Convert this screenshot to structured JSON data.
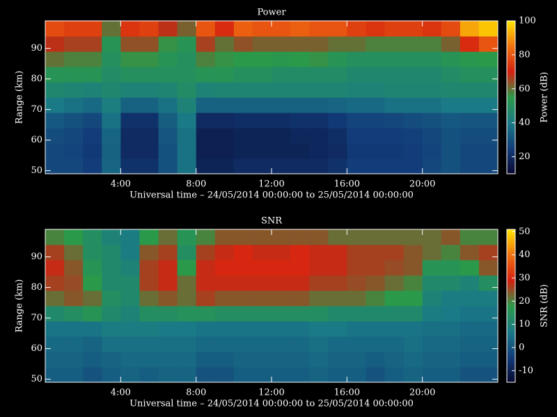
{
  "chart_data": [
    {
      "type": "heatmap",
      "title": "Power",
      "xlabel": "Universal time – 24/05/2014 00:00:00 to 25/05/2014 00:00:00",
      "ylabel": "Range (km)",
      "colorbar_label": "Power (dB)",
      "x": [
        0.5,
        1.5,
        2.5,
        3.5,
        4.5,
        5.5,
        6.5,
        7.5,
        8.5,
        9.5,
        10.5,
        11.5,
        12.5,
        13.5,
        14.5,
        15.5,
        16.5,
        17.5,
        18.5,
        19.5,
        20.5,
        21.5,
        22.5,
        23.5
      ],
      "y": [
        51.5,
        56.5,
        61.5,
        66.5,
        71.5,
        76.5,
        81.5,
        86.5,
        91.5,
        96.5
      ],
      "values": [
        [
          28,
          28,
          25,
          35,
          22,
          22,
          30,
          38,
          18,
          18,
          20,
          20,
          20,
          20,
          20,
          22,
          25,
          25,
          25,
          25,
          28,
          30,
          28,
          28
        ],
        [
          28,
          27,
          24,
          34,
          20,
          20,
          30,
          38,
          17,
          17,
          18,
          18,
          18,
          18,
          19,
          20,
          24,
          24,
          24,
          25,
          27,
          30,
          28,
          28
        ],
        [
          29,
          28,
          25,
          35,
          20,
          20,
          31,
          38,
          17,
          17,
          18,
          18,
          18,
          19,
          19,
          21,
          25,
          25,
          25,
          26,
          28,
          30,
          29,
          29
        ],
        [
          32,
          30,
          28,
          38,
          22,
          22,
          33,
          40,
          20,
          20,
          21,
          21,
          21,
          22,
          22,
          24,
          27,
          27,
          28,
          29,
          30,
          32,
          31,
          31
        ],
        [
          40,
          38,
          36,
          42,
          34,
          34,
          38,
          44,
          34,
          34,
          34,
          34,
          34,
          34,
          34,
          35,
          36,
          36,
          38,
          38,
          38,
          40,
          40,
          40
        ],
        [
          46,
          45,
          44,
          46,
          44,
          44,
          45,
          48,
          44,
          45,
          45,
          45,
          45,
          45,
          45,
          45,
          44,
          44,
          45,
          45,
          45,
          46,
          46,
          46
        ],
        [
          52,
          52,
          52,
          48,
          50,
          50,
          50,
          50,
          52,
          52,
          50,
          50,
          48,
          48,
          48,
          48,
          46,
          46,
          46,
          46,
          46,
          48,
          50,
          50
        ],
        [
          60,
          58,
          58,
          50,
          56,
          56,
          52,
          50,
          58,
          56,
          55,
          55,
          54,
          55,
          56,
          52,
          50,
          50,
          50,
          50,
          50,
          52,
          54,
          55
        ],
        [
          68,
          66,
          66,
          52,
          64,
          64,
          56,
          52,
          66,
          60,
          64,
          62,
          62,
          62,
          62,
          60,
          60,
          58,
          58,
          58,
          58,
          62,
          72,
          80
        ],
        [
          78,
          76,
          76,
          60,
          74,
          76,
          68,
          62,
          80,
          72,
          82,
          80,
          80,
          82,
          80,
          80,
          76,
          74,
          76,
          76,
          74,
          78,
          92,
          96
        ]
      ],
      "xlim": [
        0,
        24
      ],
      "xticks": [
        {
          "value": 4,
          "label": "4:00"
        },
        {
          "value": 8,
          "label": "8:00"
        },
        {
          "value": 12,
          "label": "12:00"
        },
        {
          "value": 16,
          "label": "16:00"
        },
        {
          "value": 20,
          "label": "20:00"
        }
      ],
      "ylim": [
        49,
        99
      ],
      "yticks": [
        50,
        60,
        70,
        80,
        90
      ],
      "clim": [
        10,
        100
      ],
      "cticks": [
        20,
        40,
        60,
        80,
        100
      ],
      "colormap": [
        "#08082e",
        "#123c7a",
        "#1a7a86",
        "#2a9a4a",
        "#d42010",
        "#f07010",
        "#ffe400"
      ]
    },
    {
      "type": "heatmap",
      "title": "SNR",
      "xlabel": "Universal time – 24/05/2014 00:00:00 to 25/05/2014 00:00:00",
      "ylabel": "Range (km)",
      "colorbar_label": "SNR (dB)",
      "x": [
        0.5,
        1.5,
        2.5,
        3.5,
        4.5,
        5.5,
        6.5,
        7.5,
        8.5,
        9.5,
        10.5,
        11.5,
        12.5,
        13.5,
        14.5,
        15.5,
        16.5,
        17.5,
        18.5,
        19.5,
        20.5,
        21.5,
        22.5,
        23.5
      ],
      "y": [
        51.5,
        56.5,
        61.5,
        66.5,
        71.5,
        76.5,
        81.5,
        86.5,
        91.5,
        96.5
      ],
      "values": [
        [
          2,
          2,
          0,
          2,
          3,
          2,
          3,
          3,
          0,
          0,
          2,
          2,
          2,
          2,
          3,
          2,
          2,
          0,
          2,
          3,
          2,
          2,
          0,
          0
        ],
        [
          3,
          3,
          2,
          3,
          4,
          4,
          4,
          4,
          2,
          2,
          3,
          3,
          3,
          3,
          4,
          3,
          3,
          2,
          3,
          4,
          3,
          3,
          2,
          2
        ],
        [
          4,
          4,
          3,
          5,
          5,
          5,
          5,
          5,
          4,
          4,
          4,
          4,
          4,
          4,
          5,
          4,
          4,
          4,
          4,
          5,
          4,
          4,
          3,
          3
        ],
        [
          6,
          6,
          6,
          8,
          8,
          8,
          7,
          7,
          6,
          6,
          6,
          6,
          6,
          6,
          7,
          7,
          6,
          6,
          6,
          6,
          5,
          5,
          4,
          4
        ],
        [
          12,
          14,
          16,
          12,
          10,
          14,
          14,
          15,
          15,
          14,
          14,
          14,
          14,
          14,
          14,
          12,
          12,
          12,
          12,
          12,
          8,
          7,
          6,
          6
        ],
        [
          22,
          24,
          22,
          14,
          12,
          22,
          24,
          22,
          26,
          24,
          24,
          24,
          24,
          24,
          22,
          22,
          22,
          20,
          18,
          18,
          10,
          8,
          8,
          8
        ],
        [
          26,
          25,
          18,
          12,
          12,
          26,
          28,
          22,
          28,
          28,
          28,
          28,
          28,
          28,
          26,
          26,
          25,
          24,
          22,
          20,
          12,
          12,
          10,
          14
        ],
        [
          28,
          24,
          16,
          12,
          10,
          26,
          28,
          18,
          28,
          30,
          30,
          30,
          30,
          30,
          28,
          28,
          26,
          26,
          25,
          24,
          16,
          16,
          18,
          24
        ],
        [
          26,
          22,
          14,
          12,
          8,
          24,
          26,
          14,
          26,
          28,
          30,
          28,
          28,
          30,
          28,
          28,
          26,
          26,
          26,
          24,
          22,
          20,
          24,
          26
        ],
        [
          20,
          18,
          14,
          10,
          8,
          18,
          22,
          16,
          20,
          24,
          24,
          24,
          24,
          24,
          24,
          22,
          22,
          22,
          22,
          22,
          22,
          24,
          20,
          20
        ]
      ],
      "xlim": [
        0,
        24
      ],
      "xticks": [
        {
          "value": 4,
          "label": "4:00"
        },
        {
          "value": 8,
          "label": "8:00"
        },
        {
          "value": 12,
          "label": "12:00"
        },
        {
          "value": 16,
          "label": "16:00"
        },
        {
          "value": 20,
          "label": "20:00"
        }
      ],
      "ylim": [
        49,
        99
      ],
      "yticks": [
        50,
        60,
        70,
        80,
        90
      ],
      "clim": [
        -15,
        51
      ],
      "cticks": [
        -10,
        0,
        10,
        20,
        30,
        40,
        50
      ],
      "colormap": [
        "#08082e",
        "#123c7a",
        "#1a7a86",
        "#2a9a4a",
        "#d42010",
        "#f07010",
        "#ffe400"
      ]
    }
  ]
}
